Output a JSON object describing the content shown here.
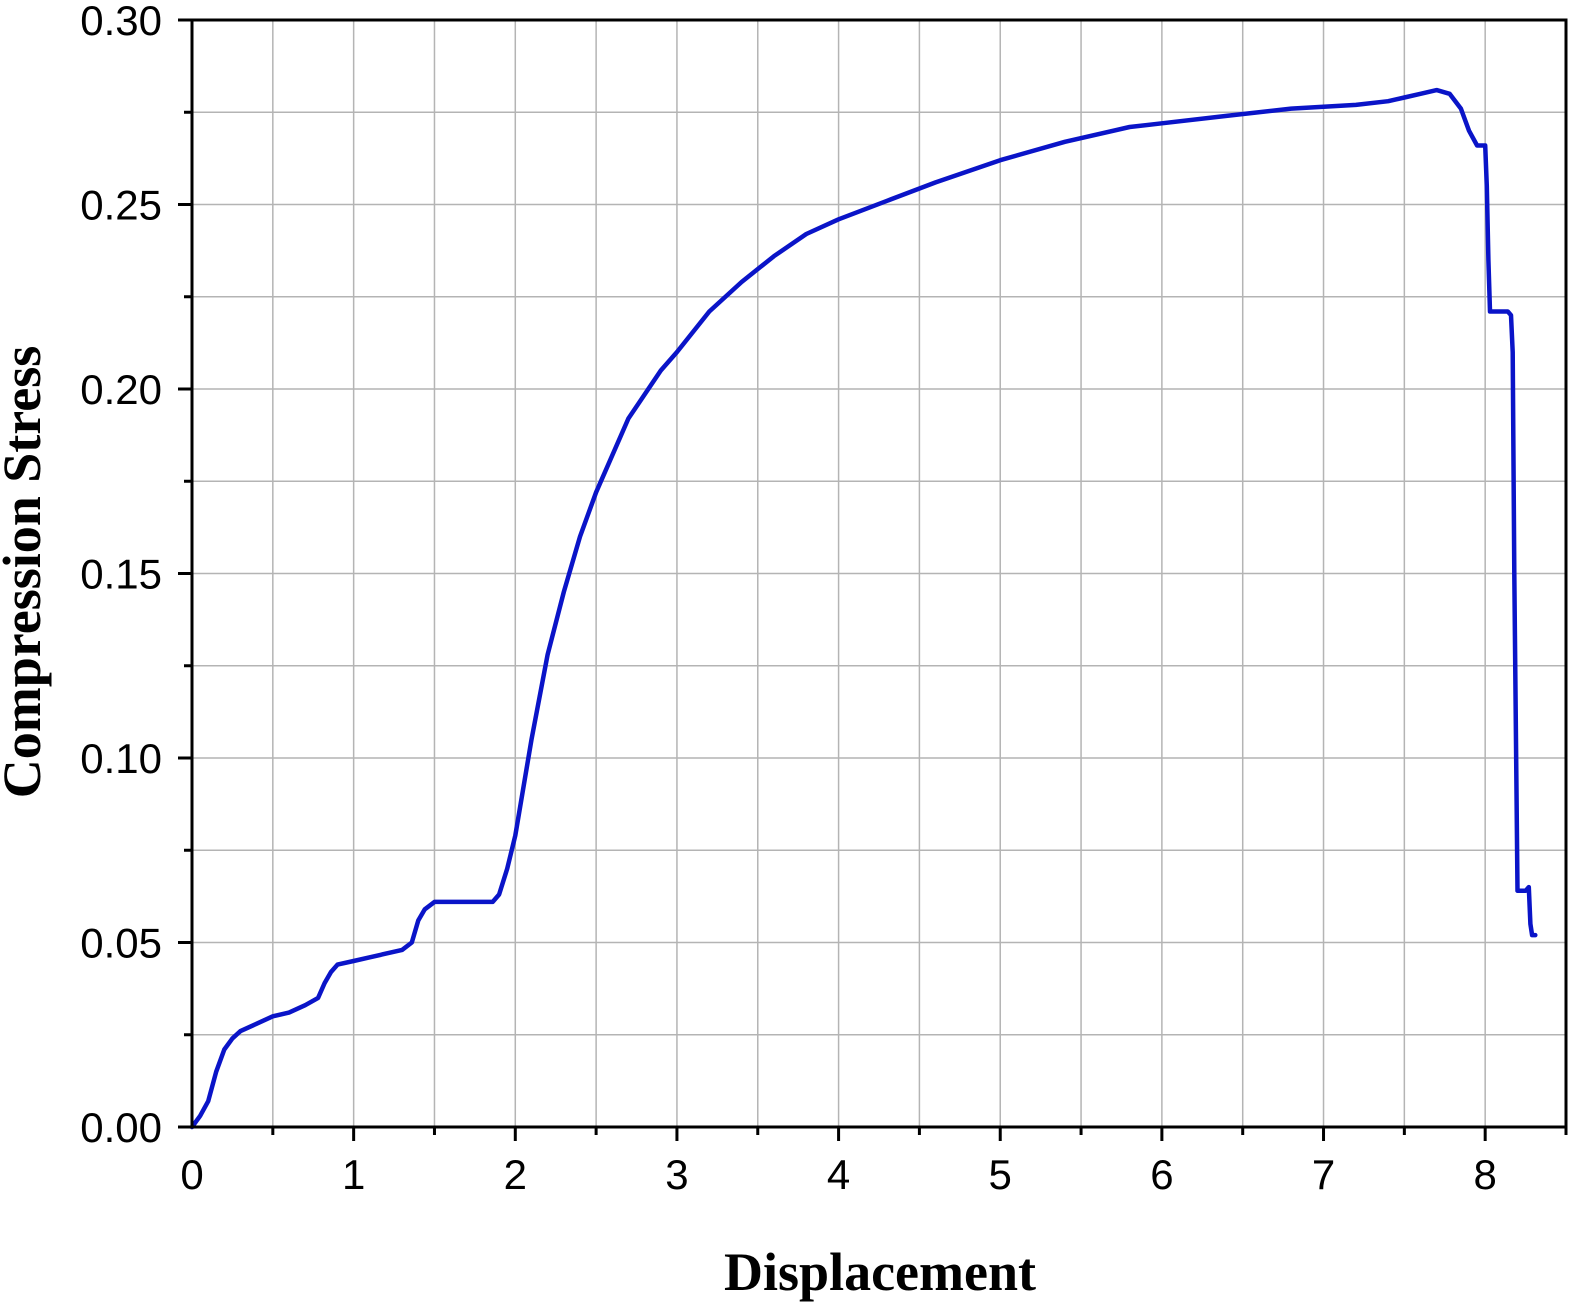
{
  "chart_data": {
    "type": "line",
    "title": "",
    "xlabel": "Displacement",
    "ylabel": "Compression Stress",
    "xlim": [
      0,
      8.5
    ],
    "ylim": [
      0,
      0.3
    ],
    "x_ticks": [
      "0",
      "1",
      "2",
      "3",
      "4",
      "5",
      "6",
      "7",
      "8"
    ],
    "y_ticks": [
      "0.00",
      "0.05",
      "0.10",
      "0.15",
      "0.20",
      "0.25",
      "0.30"
    ],
    "grid": true,
    "legend": "none",
    "series_color": "#0a14c8",
    "series": [
      {
        "x": [
          0,
          0.05,
          0.1,
          0.15,
          0.2,
          0.25,
          0.3,
          0.4,
          0.5,
          0.6,
          0.7,
          0.78,
          0.82,
          0.86,
          0.9,
          1.0,
          1.1,
          1.2,
          1.3,
          1.36,
          1.4,
          1.44,
          1.5,
          1.6,
          1.7,
          1.8,
          1.86,
          1.9,
          1.95,
          2.0,
          2.1,
          2.2,
          2.3,
          2.4,
          2.5,
          2.7,
          2.9,
          3.0,
          3.2,
          3.4,
          3.6,
          3.8,
          4.0,
          4.3,
          4.6,
          5.0,
          5.4,
          5.8,
          6.0,
          6.4,
          6.8,
          7.2,
          7.4,
          7.5,
          7.6,
          7.7,
          7.78,
          7.85,
          7.9,
          7.95,
          7.98,
          8.0,
          8.01,
          8.02,
          8.03,
          8.05,
          8.1,
          8.14,
          8.16,
          8.17,
          8.18,
          8.2,
          8.22,
          8.25,
          8.27,
          8.28,
          8.29,
          8.31
        ],
        "y": [
          0,
          0.003,
          0.007,
          0.015,
          0.021,
          0.024,
          0.026,
          0.028,
          0.03,
          0.031,
          0.033,
          0.035,
          0.039,
          0.042,
          0.044,
          0.045,
          0.046,
          0.047,
          0.048,
          0.05,
          0.056,
          0.059,
          0.061,
          0.061,
          0.061,
          0.061,
          0.061,
          0.063,
          0.07,
          0.079,
          0.105,
          0.128,
          0.145,
          0.16,
          0.172,
          0.192,
          0.205,
          0.21,
          0.221,
          0.229,
          0.236,
          0.242,
          0.246,
          0.251,
          0.256,
          0.262,
          0.267,
          0.271,
          0.272,
          0.274,
          0.276,
          0.277,
          0.278,
          0.279,
          0.28,
          0.281,
          0.28,
          0.276,
          0.27,
          0.266,
          0.266,
          0.266,
          0.255,
          0.235,
          0.221,
          0.221,
          0.221,
          0.221,
          0.22,
          0.21,
          0.15,
          0.064,
          0.064,
          0.064,
          0.065,
          0.055,
          0.052,
          0.052
        ]
      }
    ]
  }
}
